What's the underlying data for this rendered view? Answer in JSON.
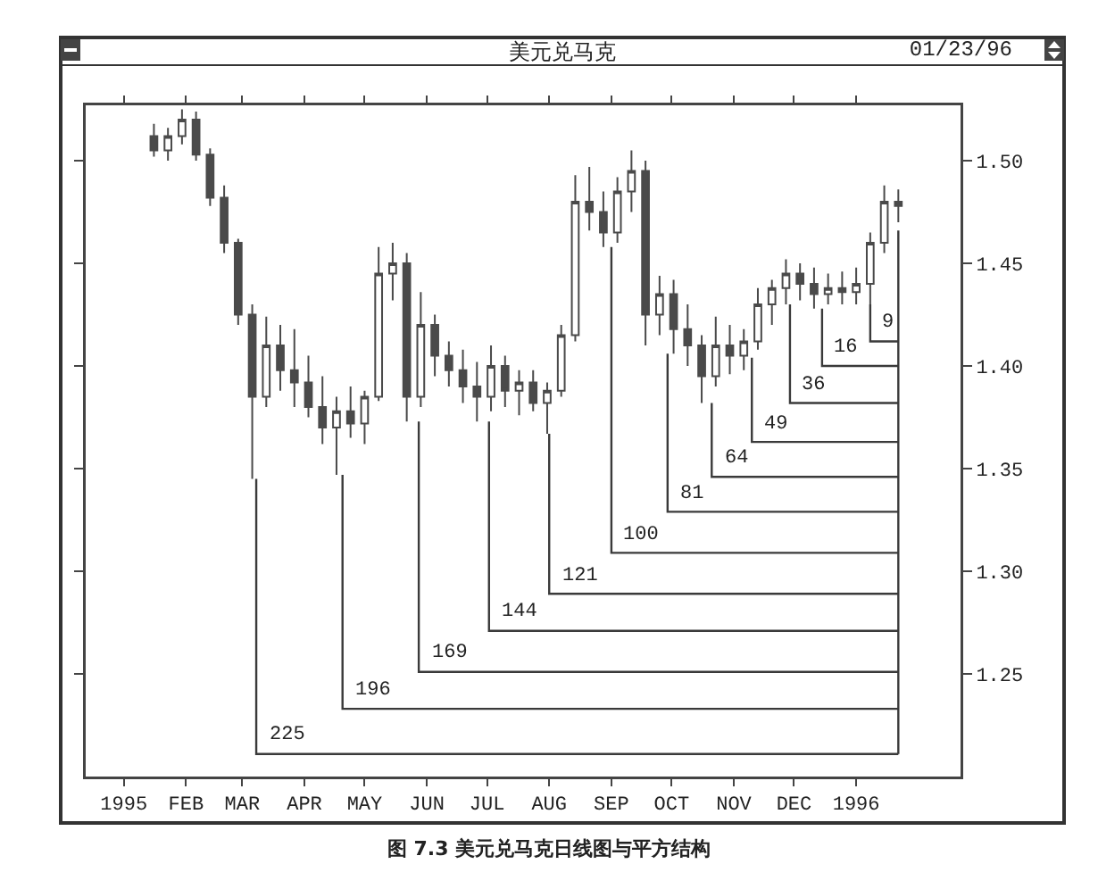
{
  "chart_data": {
    "type": "candlestick",
    "title": "美元兑马克",
    "subtitle": "01/23/96",
    "color": "#4a4a4a",
    "annotations": [
      "图 7.3   美元兑马克日线图与平方结构",
      {
        "text": "225",
        "x": "1995-03-08",
        "y": 1.211
      },
      {
        "text": "196",
        "x": "1995-04-20",
        "y": 1.233
      },
      {
        "text": "169",
        "x": "1995-05-28",
        "y": 1.251
      },
      {
        "text": "144",
        "x": "1995-07-02",
        "y": 1.271
      },
      {
        "text": "121",
        "x": "1995-08-01",
        "y": 1.289
      },
      {
        "text": "100",
        "x": "1995-09-01",
        "y": 1.309
      },
      {
        "text": "81",
        "x": "1995-09-29",
        "y": 1.329
      },
      {
        "text": "64",
        "x": "1995-10-21",
        "y": 1.346
      },
      {
        "text": "49",
        "x": "1995-11-10",
        "y": 1.363
      },
      {
        "text": "36",
        "x": "1995-11-29",
        "y": 1.382
      },
      {
        "text": "16",
        "x": "1995-12-15",
        "y": 1.4
      },
      {
        "text": "9",
        "x": "1996-01-08",
        "y": 1.412
      }
    ],
    "x": [
      "1995-01-16",
      "1995-01-23",
      "1995-01-30",
      "1995-02-06",
      "1995-02-13",
      "1995-02-20",
      "1995-02-27",
      "1995-03-06",
      "1995-03-13",
      "1995-03-20",
      "1995-03-27",
      "1995-04-03",
      "1995-04-10",
      "1995-04-17",
      "1995-04-24",
      "1995-05-01",
      "1995-05-08",
      "1995-05-15",
      "1995-05-22",
      "1995-05-29",
      "1995-06-05",
      "1995-06-12",
      "1995-06-19",
      "1995-06-26",
      "1995-07-03",
      "1995-07-10",
      "1995-07-17",
      "1995-07-24",
      "1995-07-31",
      "1995-08-07",
      "1995-08-14",
      "1995-08-21",
      "1995-08-28",
      "1995-09-04",
      "1995-09-11",
      "1995-09-18",
      "1995-09-25",
      "1995-10-02",
      "1995-10-09",
      "1995-10-16",
      "1995-10-23",
      "1995-10-30",
      "1995-11-06",
      "1995-11-13",
      "1995-11-20",
      "1995-11-27",
      "1995-12-04",
      "1995-12-11",
      "1995-12-18",
      "1995-12-25",
      "1996-01-01",
      "1996-01-08",
      "1996-01-15",
      "1996-01-22"
    ],
    "ohlc": [
      [
        1.512,
        1.518,
        1.502,
        1.505
      ],
      [
        1.505,
        1.516,
        1.5,
        1.512
      ],
      [
        1.512,
        1.525,
        1.508,
        1.52
      ],
      [
        1.52,
        1.524,
        1.5,
        1.503
      ],
      [
        1.503,
        1.506,
        1.478,
        1.482
      ],
      [
        1.482,
        1.488,
        1.455,
        1.46
      ],
      [
        1.46,
        1.462,
        1.42,
        1.425
      ],
      [
        1.425,
        1.43,
        1.345,
        1.385
      ],
      [
        1.385,
        1.424,
        1.38,
        1.41
      ],
      [
        1.41,
        1.42,
        1.388,
        1.398
      ],
      [
        1.398,
        1.418,
        1.38,
        1.392
      ],
      [
        1.392,
        1.405,
        1.375,
        1.38
      ],
      [
        1.38,
        1.395,
        1.362,
        1.37
      ],
      [
        1.37,
        1.385,
        1.347,
        1.378
      ],
      [
        1.378,
        1.39,
        1.365,
        1.372
      ],
      [
        1.372,
        1.388,
        1.362,
        1.385
      ],
      [
        1.385,
        1.458,
        1.383,
        1.445
      ],
      [
        1.445,
        1.46,
        1.432,
        1.45
      ],
      [
        1.45,
        1.455,
        1.373,
        1.385
      ],
      [
        1.385,
        1.436,
        1.38,
        1.42
      ],
      [
        1.42,
        1.425,
        1.395,
        1.405
      ],
      [
        1.405,
        1.412,
        1.39,
        1.398
      ],
      [
        1.398,
        1.408,
        1.382,
        1.39
      ],
      [
        1.39,
        1.402,
        1.373,
        1.385
      ],
      [
        1.385,
        1.41,
        1.378,
        1.4
      ],
      [
        1.4,
        1.405,
        1.38,
        1.388
      ],
      [
        1.388,
        1.398,
        1.376,
        1.392
      ],
      [
        1.392,
        1.398,
        1.378,
        1.382
      ],
      [
        1.382,
        1.392,
        1.367,
        1.388
      ],
      [
        1.388,
        1.42,
        1.385,
        1.415
      ],
      [
        1.415,
        1.493,
        1.412,
        1.48
      ],
      [
        1.48,
        1.497,
        1.466,
        1.475
      ],
      [
        1.475,
        1.485,
        1.458,
        1.465
      ],
      [
        1.465,
        1.492,
        1.46,
        1.485
      ],
      [
        1.485,
        1.505,
        1.475,
        1.495
      ],
      [
        1.495,
        1.5,
        1.41,
        1.425
      ],
      [
        1.425,
        1.444,
        1.415,
        1.435
      ],
      [
        1.435,
        1.442,
        1.406,
        1.418
      ],
      [
        1.418,
        1.43,
        1.4,
        1.41
      ],
      [
        1.41,
        1.415,
        1.382,
        1.395
      ],
      [
        1.395,
        1.424,
        1.39,
        1.41
      ],
      [
        1.41,
        1.42,
        1.396,
        1.405
      ],
      [
        1.405,
        1.418,
        1.398,
        1.412
      ],
      [
        1.412,
        1.438,
        1.408,
        1.43
      ],
      [
        1.43,
        1.442,
        1.42,
        1.438
      ],
      [
        1.438,
        1.452,
        1.43,
        1.445
      ],
      [
        1.445,
        1.45,
        1.432,
        1.44
      ],
      [
        1.44,
        1.448,
        1.428,
        1.435
      ],
      [
        1.435,
        1.445,
        1.43,
        1.438
      ],
      [
        1.438,
        1.446,
        1.43,
        1.436
      ],
      [
        1.436,
        1.448,
        1.43,
        1.44
      ],
      [
        1.44,
        1.465,
        1.43,
        1.46
      ],
      [
        1.46,
        1.488,
        1.455,
        1.48
      ],
      [
        1.48,
        1.486,
        1.47,
        1.478
      ]
    ],
    "series": [
      {
        "type": "line",
        "color": "#3a3a3a",
        "x": [
          "1995-03-08",
          "1995-03-08",
          "1996-01-22"
        ],
        "values": [
          1.345,
          1.211,
          1.211
        ]
      },
      {
        "type": "line",
        "color": "#3a3a3a",
        "x": [
          "1995-04-20",
          "1995-04-20",
          "1996-01-22"
        ],
        "values": [
          1.347,
          1.233,
          1.233
        ]
      },
      {
        "type": "line",
        "color": "#3a3a3a",
        "x": [
          "1995-05-28",
          "1995-05-28",
          "1996-01-22"
        ],
        "values": [
          1.373,
          1.251,
          1.251
        ]
      },
      {
        "type": "line",
        "color": "#3a3a3a",
        "x": [
          "1995-07-02",
          "1995-07-02",
          "1996-01-22"
        ],
        "values": [
          1.373,
          1.271,
          1.271
        ]
      },
      {
        "type": "line",
        "color": "#3a3a3a",
        "x": [
          "1995-08-01",
          "1995-08-01",
          "1996-01-22"
        ],
        "values": [
          1.367,
          1.289,
          1.289
        ]
      },
      {
        "type": "line",
        "color": "#3a3a3a",
        "x": [
          "1995-09-01",
          "1995-09-01",
          "1996-01-22"
        ],
        "values": [
          1.458,
          1.309,
          1.309
        ]
      },
      {
        "type": "line",
        "color": "#3a3a3a",
        "x": [
          "1995-09-29",
          "1995-09-29",
          "1996-01-22"
        ],
        "values": [
          1.406,
          1.329,
          1.329
        ]
      },
      {
        "type": "line",
        "color": "#3a3a3a",
        "x": [
          "1995-10-21",
          "1995-10-21",
          "1996-01-22"
        ],
        "values": [
          1.382,
          1.346,
          1.346
        ]
      },
      {
        "type": "line",
        "color": "#3a3a3a",
        "x": [
          "1995-11-10",
          "1995-11-10",
          "1996-01-22"
        ],
        "values": [
          1.404,
          1.363,
          1.363
        ]
      },
      {
        "type": "line",
        "color": "#3a3a3a",
        "x": [
          "1995-11-29",
          "1995-11-29",
          "1996-01-22"
        ],
        "values": [
          1.43,
          1.382,
          1.382
        ]
      },
      {
        "type": "line",
        "color": "#3a3a3a",
        "x": [
          "1995-12-15",
          "1995-12-15",
          "1996-01-22"
        ],
        "values": [
          1.428,
          1.4,
          1.4
        ]
      },
      {
        "type": "line",
        "color": "#3a3a3a",
        "x": [
          "1996-01-08",
          "1996-01-08",
          "1996-01-22"
        ],
        "values": [
          1.43,
          1.412,
          1.412
        ]
      },
      {
        "type": "line",
        "color": "#3a3a3a",
        "x": [
          "1996-01-22",
          "1996-01-22"
        ],
        "values": [
          1.211,
          1.466
        ]
      }
    ],
    "xlim": [
      "1994-12-13",
      "1996-02-22"
    ],
    "xticks": [
      {
        "value": "1995-01-01",
        "label": "1995"
      },
      {
        "value": "1995-02-01",
        "label": "FEB"
      },
      {
        "value": "1995-03-01",
        "label": "MAR"
      },
      {
        "value": "1995-04-01",
        "label": "APR"
      },
      {
        "value": "1995-05-01",
        "label": "MAY"
      },
      {
        "value": "1995-06-01",
        "label": "JUN"
      },
      {
        "value": "1995-07-01",
        "label": "JUL"
      },
      {
        "value": "1995-08-01",
        "label": "AUG"
      },
      {
        "value": "1995-09-01",
        "label": "SEP"
      },
      {
        "value": "1995-10-01",
        "label": "OCT"
      },
      {
        "value": "1995-11-01",
        "label": "NOV"
      },
      {
        "value": "1995-12-01",
        "label": "DEC"
      },
      {
        "value": "1996-01-01",
        "label": "1996"
      }
    ],
    "ylim": [
      1.2,
      1.527
    ],
    "yticks": [
      {
        "value": 1.25,
        "label": "1.25"
      },
      {
        "value": 1.3,
        "label": "1.30"
      },
      {
        "value": 1.35,
        "label": "1.35"
      },
      {
        "value": 1.4,
        "label": "1.40"
      },
      {
        "value": 1.45,
        "label": "1.45"
      },
      {
        "value": 1.5,
        "label": "1.50"
      }
    ],
    "grid": false
  }
}
